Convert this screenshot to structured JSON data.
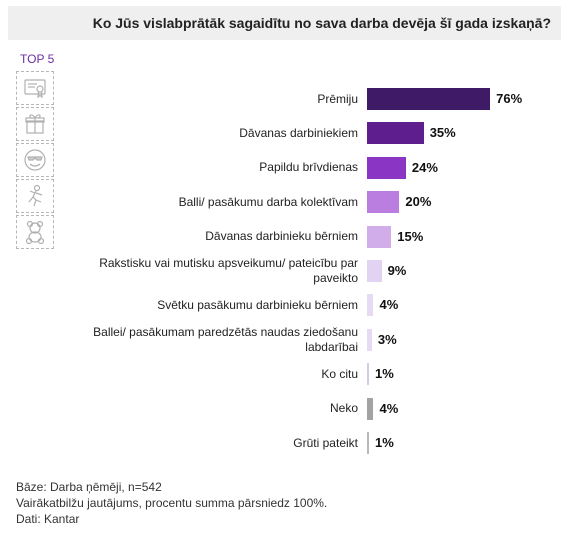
{
  "title": "Ko Jūs vislabprātāk sagaidītu no sava darba devēja šī gada izskaņā?",
  "top_badge": "TOP 5",
  "icons": [
    "certificate-icon",
    "gift-icon",
    "smiley-sunglasses-icon",
    "dancing-person-icon",
    "teddy-bear-icon"
  ],
  "chart_data": {
    "type": "bar",
    "orientation": "horizontal",
    "categories": [
      "Prēmiju",
      "Dāvanas darbiniekiem",
      "Papildu brīvdienas",
      "Balli/ pasākumu darba kolektīvam",
      "Dāvanas darbinieku bērniem",
      "Rakstisku vai mutisku apsveikumu/ pateicību par paveikto",
      "Svētku pasākumu darbinieku bērniem",
      "Ballei/ pasākumam paredzētās naudas ziedošanu labdarībai",
      "Ko citu",
      "Neko",
      "Grūti pateikt"
    ],
    "values": [
      76,
      35,
      24,
      20,
      15,
      9,
      4,
      3,
      1,
      4,
      1
    ],
    "value_labels": [
      "76%",
      "35%",
      "24%",
      "20%",
      "15%",
      "9%",
      "4%",
      "3%",
      "1%",
      "4%",
      "1%"
    ],
    "colors": [
      "#3f1a66",
      "#5e1e8e",
      "#8a35c4",
      "#b97ee0",
      "#d1aee9",
      "#e3d3f2",
      "#e7daf3",
      "#e7daf3",
      "#d6c8e6",
      "#a3a3a3",
      "#b8b8b8"
    ],
    "xlim": [
      0,
      100
    ],
    "legend": "none",
    "grid": false
  },
  "footnotes": [
    "Bāze: Darba ņēmēji, n=542",
    "Vairākatbilžu jautājums, procentu summa pārsniedz 100%.",
    "Dati: Kantar"
  ]
}
